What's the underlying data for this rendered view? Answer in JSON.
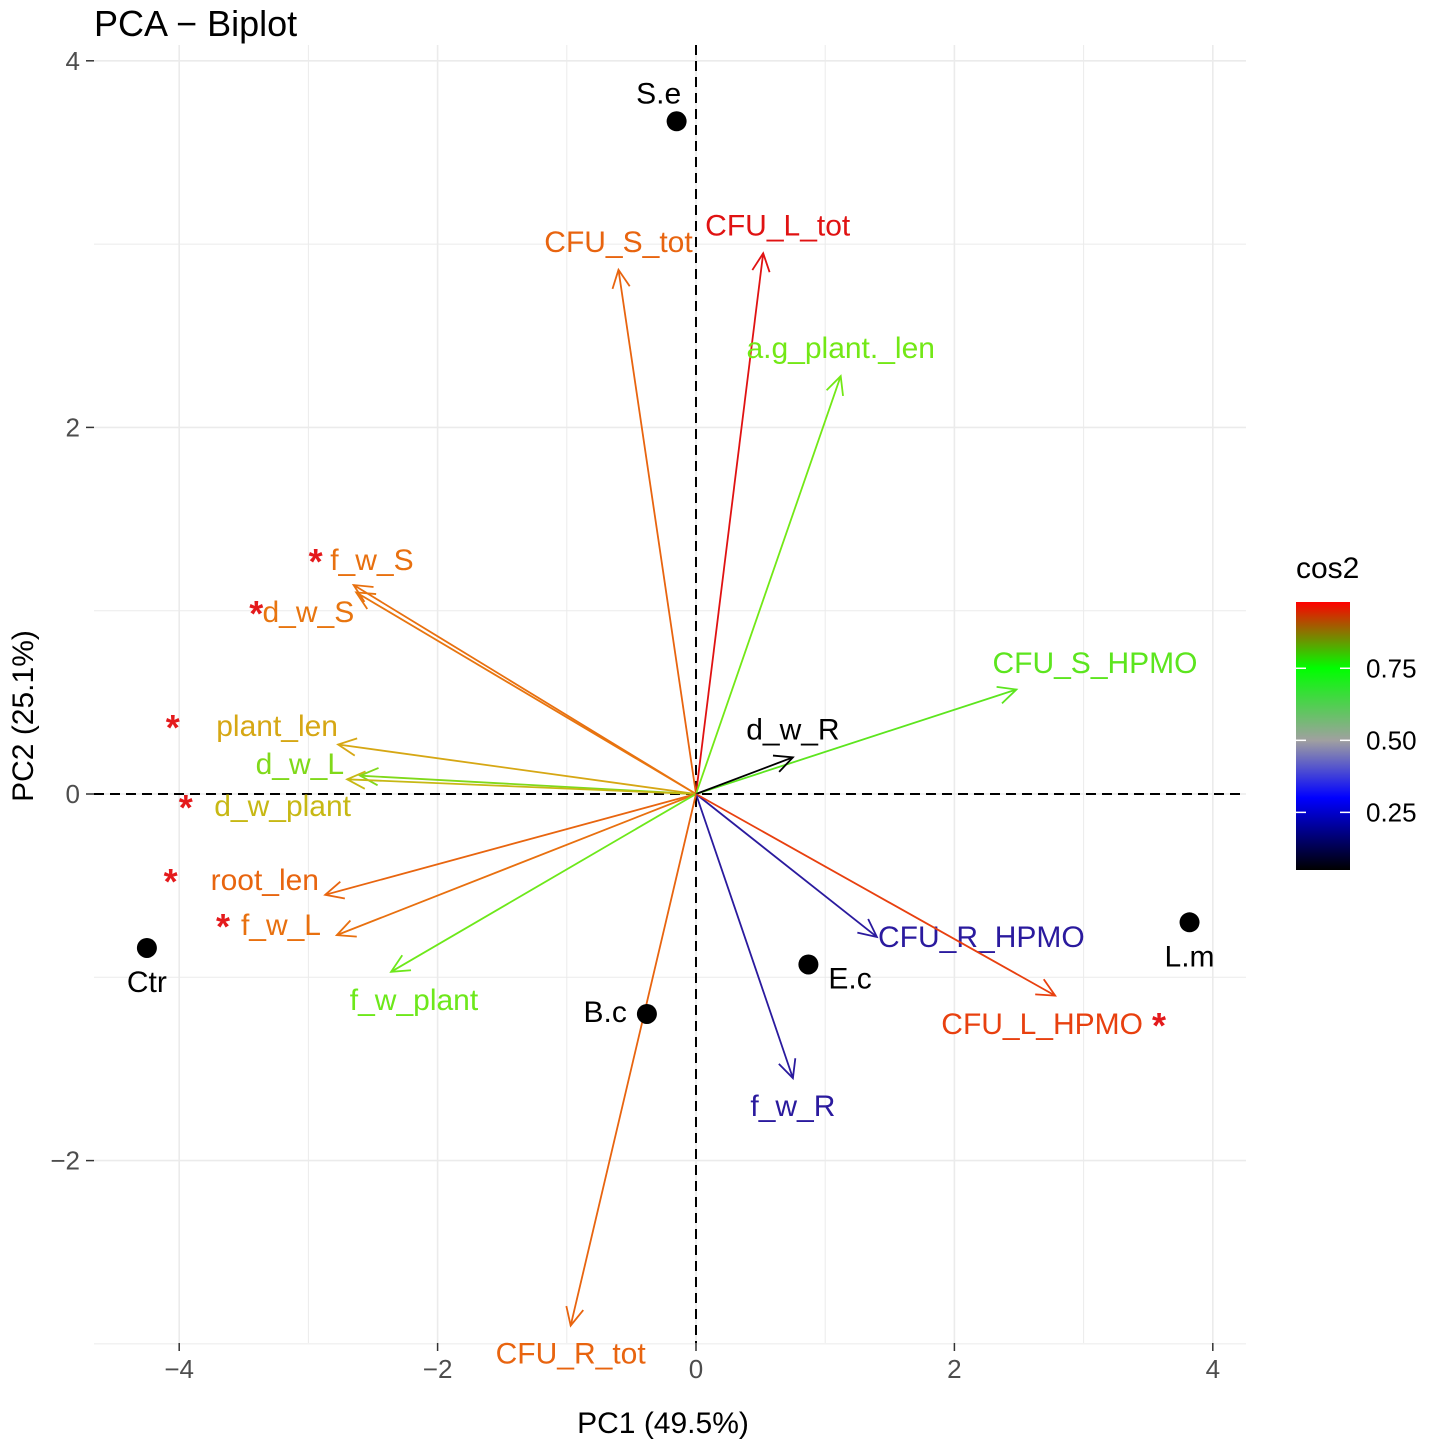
{
  "chart_data": {
    "type": "scatter",
    "title": "PCA − Biplot",
    "xlabel": "PC1 (49.5%)",
    "ylabel": "PC2 (25.1%)",
    "xlim": [
      -4.63,
      4.23
    ],
    "ylim": [
      -3.0,
      4.0
    ],
    "xticks": [
      -4,
      -2,
      0,
      2,
      4
    ],
    "xtick_labels": [
      "−4",
      "−2",
      "0",
      "2",
      "4"
    ],
    "yticks": [
      -2,
      0,
      2,
      4
    ],
    "ytick_labels": [
      "−2",
      "0",
      "2",
      "4"
    ],
    "grid": true,
    "reference_lines": {
      "x": 0,
      "y": 0,
      "style": "dashed"
    },
    "individuals": [
      {
        "name": "S.e",
        "x": -0.15,
        "y": 3.67,
        "label_pos": "above"
      },
      {
        "name": "Ctr",
        "x": -4.25,
        "y": -0.84,
        "label_pos": "below"
      },
      {
        "name": "B.c",
        "x": -0.38,
        "y": -1.2,
        "label_pos": "left"
      },
      {
        "name": "E.c",
        "x": 0.87,
        "y": -0.93,
        "label_pos": "below-right"
      },
      {
        "name": "L.m",
        "x": 3.82,
        "y": -0.7,
        "label_pos": "below"
      }
    ],
    "variables": [
      {
        "name": "CFU_S_tot",
        "x": -0.6,
        "y": 2.86,
        "cos2": 0.93,
        "color": "#E8640F",
        "significant": false,
        "label_pos": "above"
      },
      {
        "name": "CFU_L_tot",
        "x": 0.52,
        "y": 2.95,
        "cos2": 0.98,
        "color": "#E01212",
        "significant": false,
        "label_pos": "above-right"
      },
      {
        "name": "a.g_plant._len",
        "x": 1.12,
        "y": 2.28,
        "cos2": 0.79,
        "color": "#73E816",
        "significant": false,
        "label_pos": "above"
      },
      {
        "name": "f_w_S",
        "x": -2.65,
        "y": 1.14,
        "cos2": 0.92,
        "color": "#E8700F",
        "significant": true,
        "label_pos": "upper-left"
      },
      {
        "name": "d_w_S",
        "x": -2.63,
        "y": 1.1,
        "cos2": 0.91,
        "color": "#E8750F",
        "significant": true,
        "label_pos": "left"
      },
      {
        "name": "plant_len",
        "x": -2.77,
        "y": 0.27,
        "cos2": 0.84,
        "color": "#D6A714",
        "significant": true,
        "label_pos": "left"
      },
      {
        "name": "d_w_L",
        "x": -2.6,
        "y": 0.1,
        "cos2": 0.8,
        "color": "#80D91A",
        "significant": false,
        "label_pos": "left"
      },
      {
        "name": "d_w_plant",
        "x": -2.7,
        "y": 0.08,
        "cos2": 0.83,
        "color": "#C7B814",
        "significant": true,
        "label_pos": "lower-left"
      },
      {
        "name": "root_len",
        "x": -2.87,
        "y": -0.55,
        "cos2": 0.92,
        "color": "#E8650F",
        "significant": true,
        "label_pos": "left"
      },
      {
        "name": "f_w_L",
        "x": -2.78,
        "y": -0.77,
        "cos2": 0.91,
        "color": "#E8700F",
        "significant": true,
        "label_pos": "left"
      },
      {
        "name": "f_w_plant",
        "x": -2.36,
        "y": -0.97,
        "cos2": 0.78,
        "color": "#6DE81A",
        "significant": false,
        "label_pos": "below"
      },
      {
        "name": "CFU_S_HPMO",
        "x": 2.48,
        "y": 0.57,
        "cos2": 0.77,
        "color": "#5CE51E",
        "significant": false,
        "label_pos": "above"
      },
      {
        "name": "d_w_R",
        "x": 0.75,
        "y": 0.2,
        "cos2": 0.05,
        "color": "#000000",
        "significant": false,
        "label_pos": "above"
      },
      {
        "name": "CFU_R_HPMO",
        "x": 1.4,
        "y": -0.78,
        "cos2": 0.3,
        "color": "#2A1A9E",
        "significant": false,
        "label_pos": "right"
      },
      {
        "name": "CFU_L_HPMO",
        "x": 2.78,
        "y": -1.1,
        "cos2": 0.97,
        "color": "#E8400F",
        "significant": true,
        "label_pos": "below-left"
      },
      {
        "name": "f_w_R",
        "x": 0.75,
        "y": -1.55,
        "cos2": 0.3,
        "color": "#2A1A9E",
        "significant": false,
        "label_pos": "below"
      },
      {
        "name": "CFU_R_tot",
        "x": -0.97,
        "y": -2.9,
        "cos2": 0.93,
        "color": "#E8640F",
        "significant": false,
        "label_pos": "below"
      }
    ],
    "legend": {
      "title": "cos2",
      "position": "right",
      "range": [
        0.05,
        0.98
      ],
      "ticks": [
        0.25,
        0.5,
        0.75
      ],
      "tick_labels": [
        "0.25",
        "0.50",
        "0.75"
      ],
      "gradient_stops": [
        {
          "value": 0.05,
          "color": "#000000"
        },
        {
          "value": 0.3,
          "color": "#0000FF"
        },
        {
          "value": 0.5,
          "color": "#A0A0A0"
        },
        {
          "value": 0.75,
          "color": "#00FF00"
        },
        {
          "value": 0.98,
          "color": "#FF0000"
        }
      ]
    },
    "significance_marker": "*",
    "significance_color": "#E41A1C"
  }
}
